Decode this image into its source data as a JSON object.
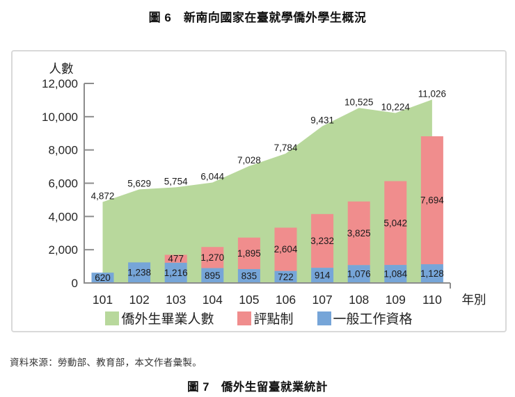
{
  "page": {
    "title_fig6": "圖 6　新南向國家在臺就學僑外學生概況",
    "source": "資料來源：勞動部、教育部，本文作者彙製。",
    "title_fig7": "圖 7　僑外生留臺就業統計"
  },
  "chart_data": {
    "type": "area+stacked-bar",
    "title": "",
    "ylabel": "人數",
    "xlabel": "年別",
    "categories": [
      "101",
      "102",
      "103",
      "104",
      "105",
      "106",
      "107",
      "108",
      "109",
      "110"
    ],
    "ylim": [
      0,
      12000
    ],
    "ytick_step": 2000,
    "ytick_labels": [
      "0",
      "2,000",
      "4,000",
      "6,000",
      "8,000",
      "10,000",
      "12,000"
    ],
    "grid": false,
    "legend_position": "bottom",
    "series": [
      {
        "name": "僑外生畢業人數",
        "type": "area",
        "color": "#b8d89c",
        "values": [
          4872,
          5629,
          5754,
          6044,
          7028,
          7784,
          9431,
          10525,
          10224,
          11026
        ]
      },
      {
        "name": "評點制",
        "type": "bar-stack-top",
        "color": "#f08d8d",
        "values": [
          null,
          null,
          477,
          1270,
          1895,
          2604,
          3232,
          3825,
          5042,
          7694
        ]
      },
      {
        "name": "一般工作資格",
        "type": "bar-stack-bottom",
        "color": "#76a5d8",
        "values": [
          620,
          1238,
          1216,
          895,
          835,
          722,
          914,
          1076,
          1084,
          1128
        ]
      }
    ],
    "style": {
      "axis_color": "#8c8c8c",
      "label_color": "#1a1a1a",
      "tick_label_color": "#262626"
    }
  }
}
